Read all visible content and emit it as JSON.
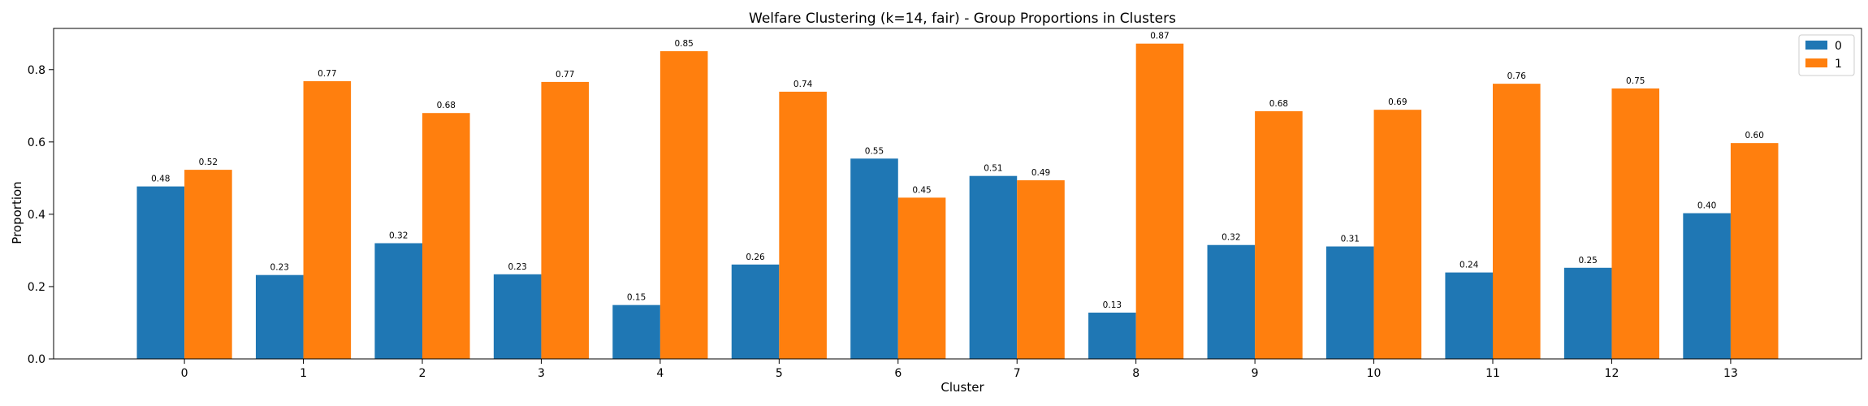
{
  "chart_data": {
    "type": "bar",
    "title": "Welfare Clustering (k=14, fair) - Group Proportions in Clusters",
    "xlabel": "Cluster",
    "ylabel": "Proportion",
    "categories": [
      "0",
      "1",
      "2",
      "3",
      "4",
      "5",
      "6",
      "7",
      "8",
      "9",
      "10",
      "11",
      "12",
      "13"
    ],
    "ylim": [
      0,
      0.914
    ],
    "yticks": [
      0.0,
      0.2,
      0.4,
      0.6,
      0.8
    ],
    "ytick_labels": [
      "0.0",
      "0.2",
      "0.4",
      "0.6",
      "0.8"
    ],
    "grid": false,
    "legend_position": "top-right",
    "series": [
      {
        "name": "0",
        "color": "#1f77b4",
        "values": [
          0.477,
          0.232,
          0.32,
          0.234,
          0.149,
          0.261,
          0.554,
          0.506,
          0.128,
          0.315,
          0.311,
          0.239,
          0.252,
          0.403
        ],
        "labels": [
          "0.48",
          "0.23",
          "0.32",
          "0.23",
          "0.15",
          "0.26",
          "0.55",
          "0.51",
          "0.13",
          "0.32",
          "0.31",
          "0.24",
          "0.25",
          "0.40"
        ]
      },
      {
        "name": "1",
        "color": "#ff7f0e",
        "values": [
          0.523,
          0.768,
          0.68,
          0.766,
          0.851,
          0.739,
          0.446,
          0.494,
          0.872,
          0.685,
          0.689,
          0.761,
          0.748,
          0.597
        ],
        "labels": [
          "0.52",
          "0.77",
          "0.68",
          "0.77",
          "0.85",
          "0.74",
          "0.45",
          "0.49",
          "0.87",
          "0.68",
          "0.69",
          "0.76",
          "0.75",
          "0.60"
        ]
      }
    ]
  }
}
